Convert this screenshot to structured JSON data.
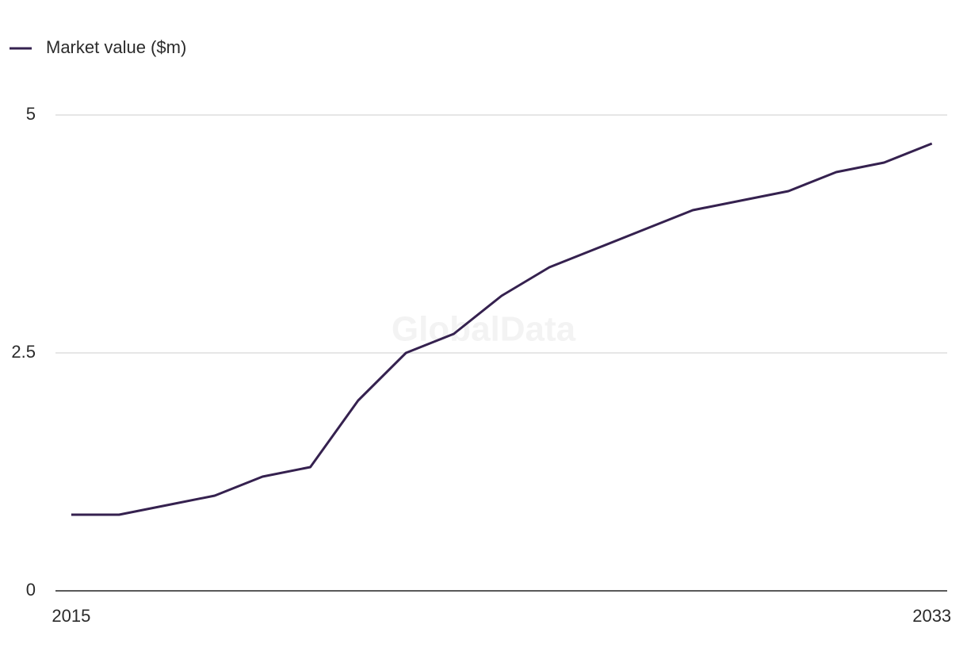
{
  "chart_data": {
    "type": "line",
    "watermark": "GlobalData",
    "x": [
      2015,
      2016,
      2017,
      2018,
      2019,
      2020,
      2021,
      2022,
      2023,
      2024,
      2025,
      2026,
      2027,
      2028,
      2029,
      2030,
      2031,
      2032,
      2033
    ],
    "series": [
      {
        "name": "Market value ($m)",
        "color": "#35214f",
        "values": [
          0.8,
          0.8,
          0.9,
          1.0,
          1.2,
          1.3,
          2.0,
          2.5,
          2.7,
          3.1,
          3.4,
          3.6,
          3.8,
          4.0,
          4.1,
          4.2,
          4.4,
          4.5,
          4.7
        ]
      }
    ],
    "xlim": [
      2014.67,
      2033.32
    ],
    "xticks": [
      2015,
      2033
    ],
    "ylim": [
      0,
      5
    ],
    "yticks": [
      0,
      2.5,
      5
    ],
    "grid": true,
    "legend": "top-left"
  }
}
